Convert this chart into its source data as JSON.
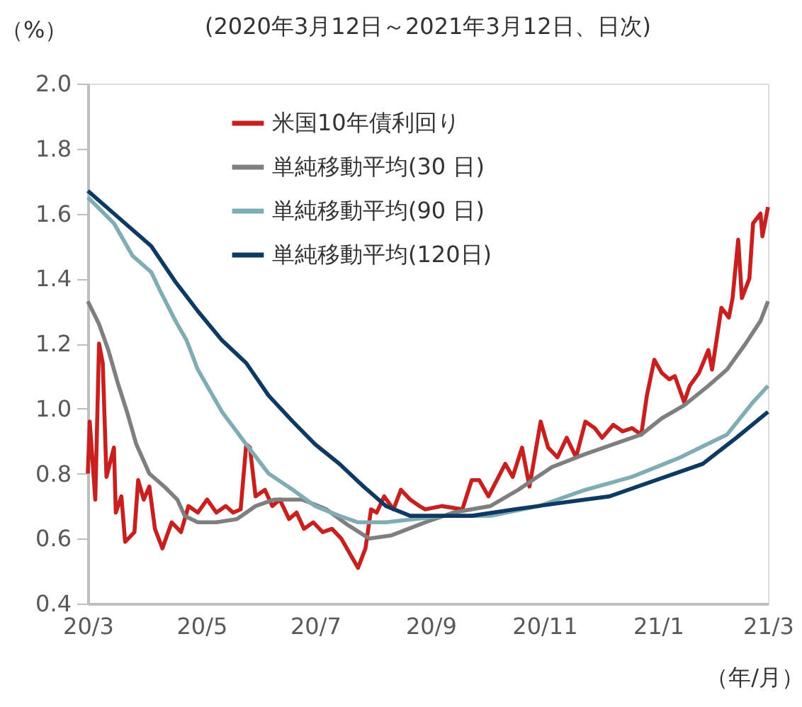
{
  "chart_data": {
    "type": "line",
    "subtitle": "(2020年3月12日～2021年3月12日、日次)",
    "ylabel": "（%）",
    "xlabel": "（年/月）",
    "xlim": [
      "2020-03-12",
      "2021-03-12"
    ],
    "xticks": [
      {
        "value": "2020-03-12",
        "label": "20/3"
      },
      {
        "value": "2020-05-12",
        "label": "20/5"
      },
      {
        "value": "2020-07-12",
        "label": "20/7"
      },
      {
        "value": "2020-09-12",
        "label": "20/9"
      },
      {
        "value": "2020-11-12",
        "label": "20/11"
      },
      {
        "value": "2021-01-12",
        "label": "21/1"
      },
      {
        "value": "2021-03-12",
        "label": "21/3"
      }
    ],
    "ylim": [
      0.4,
      2.0
    ],
    "yticks": [
      {
        "value": 0.4,
        "label": "0.4"
      },
      {
        "value": 0.6,
        "label": "0.6"
      },
      {
        "value": 0.8,
        "label": "0.8"
      },
      {
        "value": 1.0,
        "label": "1.0"
      },
      {
        "value": 1.2,
        "label": "1.2"
      },
      {
        "value": 1.4,
        "label": "1.4"
      },
      {
        "value": 1.6,
        "label": "1.6"
      },
      {
        "value": 1.8,
        "label": "1.8"
      },
      {
        "value": 2.0,
        "label": "2.0"
      }
    ],
    "grid": false,
    "legend": "top",
    "marker": "none",
    "line_style": "solid",
    "series": [
      {
        "name": "米国10年債利回り",
        "color": "#c8201e",
        "x": [
          "2020-03-12",
          "2020-03-13",
          "2020-03-16",
          "2020-03-18",
          "2020-03-20",
          "2020-03-22",
          "2020-03-26",
          "2020-03-27",
          "2020-03-30",
          "2020-04-01",
          "2020-04-06",
          "2020-04-08",
          "2020-04-11",
          "2020-04-14",
          "2020-04-17",
          "2020-04-21",
          "2020-04-26",
          "2020-05-01",
          "2020-05-05",
          "2020-05-10",
          "2020-05-15",
          "2020-05-20",
          "2020-05-25",
          "2020-05-29",
          "2020-06-02",
          "2020-06-05",
          "2020-06-07",
          "2020-06-10",
          "2020-06-15",
          "2020-06-19",
          "2020-06-23",
          "2020-06-28",
          "2020-07-02",
          "2020-07-06",
          "2020-07-11",
          "2020-07-16",
          "2020-07-21",
          "2020-07-26",
          "2020-07-30",
          "2020-08-04",
          "2020-08-08",
          "2020-08-11",
          "2020-08-14",
          "2020-08-18",
          "2020-08-23",
          "2020-08-27",
          "2020-09-01",
          "2020-09-06",
          "2020-09-09",
          "2020-09-18",
          "2020-09-29",
          "2020-10-04",
          "2020-10-08",
          "2020-10-13",
          "2020-10-22",
          "2020-10-26",
          "2020-10-31",
          "2020-11-04",
          "2020-11-10",
          "2020-11-14",
          "2020-11-19",
          "2020-11-24",
          "2020-11-29",
          "2020-12-04",
          "2020-12-09",
          "2020-12-13",
          "2020-12-19",
          "2020-12-24",
          "2020-12-29",
          "2021-01-03",
          "2021-01-06",
          "2021-01-10",
          "2021-01-14",
          "2021-01-18",
          "2021-01-21",
          "2021-01-26",
          "2021-01-29",
          "2021-02-03",
          "2021-02-08",
          "2021-02-10",
          "2021-02-15",
          "2021-02-19",
          "2021-02-21",
          "2021-02-24",
          "2021-02-26",
          "2021-03-02",
          "2021-03-04",
          "2021-03-08",
          "2021-03-09",
          "2021-03-12"
        ],
        "values": [
          0.8,
          0.96,
          0.72,
          1.2,
          1.14,
          0.79,
          0.88,
          0.68,
          0.73,
          0.59,
          0.62,
          0.78,
          0.72,
          0.76,
          0.63,
          0.57,
          0.65,
          0.62,
          0.7,
          0.68,
          0.72,
          0.68,
          0.7,
          0.68,
          0.69,
          0.89,
          0.88,
          0.73,
          0.75,
          0.7,
          0.72,
          0.66,
          0.68,
          0.63,
          0.65,
          0.62,
          0.63,
          0.6,
          0.56,
          0.51,
          0.57,
          0.69,
          0.68,
          0.73,
          0.69,
          0.75,
          0.72,
          0.7,
          0.69,
          0.7,
          0.69,
          0.78,
          0.78,
          0.73,
          0.83,
          0.79,
          0.88,
          0.76,
          0.96,
          0.88,
          0.85,
          0.91,
          0.85,
          0.96,
          0.94,
          0.91,
          0.95,
          0.93,
          0.94,
          0.92,
          1.04,
          1.15,
          1.11,
          1.09,
          1.1,
          1.02,
          1.07,
          1.11,
          1.18,
          1.12,
          1.31,
          1.28,
          1.34,
          1.52,
          1.34,
          1.4,
          1.57,
          1.6,
          1.53,
          1.62
        ]
      },
      {
        "name": "単純移動平均(30 日)",
        "color": "#7f7f7f",
        "x": [
          "2020-03-12",
          "2020-03-18",
          "2020-03-23",
          "2020-03-28",
          "2020-04-02",
          "2020-04-07",
          "2020-04-14",
          "2020-04-22",
          "2020-04-29",
          "2020-05-03",
          "2020-05-10",
          "2020-05-20",
          "2020-05-31",
          "2020-06-10",
          "2020-06-20",
          "2020-07-05",
          "2020-07-18",
          "2020-07-30",
          "2020-08-10",
          "2020-08-22",
          "2020-09-09",
          "2020-09-24",
          "2020-10-14",
          "2020-10-29",
          "2020-11-16",
          "2020-12-04",
          "2020-12-19",
          "2021-01-03",
          "2021-01-14",
          "2021-01-26",
          "2021-02-08",
          "2021-02-18",
          "2021-02-28",
          "2021-03-08",
          "2021-03-12"
        ],
        "values": [
          1.33,
          1.26,
          1.18,
          1.08,
          0.99,
          0.89,
          0.8,
          0.76,
          0.72,
          0.67,
          0.65,
          0.65,
          0.66,
          0.7,
          0.72,
          0.72,
          0.69,
          0.64,
          0.6,
          0.61,
          0.65,
          0.68,
          0.7,
          0.75,
          0.82,
          0.86,
          0.89,
          0.92,
          0.97,
          1.01,
          1.07,
          1.12,
          1.2,
          1.27,
          1.33
        ]
      },
      {
        "name": "単純移動平均(90 日)",
        "color": "#7fadb3",
        "x": [
          "2020-03-12",
          "2020-03-26",
          "2020-04-05",
          "2020-04-15",
          "2020-04-20",
          "2020-04-28",
          "2020-05-04",
          "2020-05-10",
          "2020-05-23",
          "2020-06-05",
          "2020-06-17",
          "2020-06-30",
          "2020-07-12",
          "2020-07-25",
          "2020-08-04",
          "2020-08-19",
          "2020-09-19",
          "2020-10-14",
          "2020-11-09",
          "2020-12-04",
          "2020-12-29",
          "2021-01-24",
          "2021-02-18",
          "2021-03-04",
          "2021-03-12"
        ],
        "values": [
          1.65,
          1.57,
          1.47,
          1.42,
          1.36,
          1.27,
          1.21,
          1.12,
          0.99,
          0.89,
          0.8,
          0.75,
          0.7,
          0.67,
          0.65,
          0.65,
          0.67,
          0.67,
          0.7,
          0.75,
          0.79,
          0.85,
          0.92,
          1.02,
          1.07
        ]
      },
      {
        "name": "単純移動平均(120日)",
        "color": "#0d3a63",
        "x": [
          "2020-03-12",
          "2020-03-26",
          "2020-04-15",
          "2020-04-28",
          "2020-05-10",
          "2020-05-23",
          "2020-06-05",
          "2020-06-17",
          "2020-06-30",
          "2020-07-12",
          "2020-07-25",
          "2020-08-07",
          "2020-08-19",
          "2020-09-01",
          "2020-09-14",
          "2020-10-04",
          "2020-10-27",
          "2020-11-21",
          "2020-12-17",
          "2021-01-11",
          "2021-02-05",
          "2021-02-23",
          "2021-03-12"
        ],
        "values": [
          1.67,
          1.6,
          1.5,
          1.39,
          1.3,
          1.21,
          1.14,
          1.04,
          0.96,
          0.89,
          0.83,
          0.76,
          0.7,
          0.67,
          0.67,
          0.67,
          0.69,
          0.71,
          0.73,
          0.78,
          0.83,
          0.91,
          0.99
        ]
      }
    ]
  }
}
